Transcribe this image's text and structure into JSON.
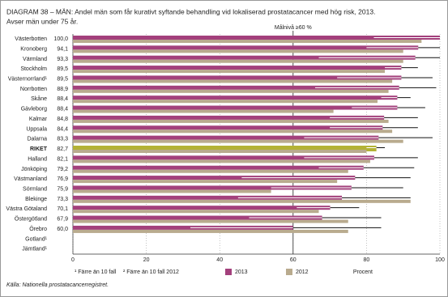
{
  "chart_data": {
    "type": "bar",
    "title": "DIAGRAM 38 – MÄN: Andel män som får kurativt syftande behandling vid lokaliserad prostatacancer med hög risk, 2013.",
    "subtitle": "Avser män under 75 år.",
    "categories": [
      "Västerbotten",
      "Kronoberg",
      "Värmland",
      "Stockholm",
      "Västernorrland¹",
      "Norrbotten",
      "Skåne",
      "Gävleborg",
      "Kalmar",
      "Uppsala",
      "Dalarna",
      "RIKET",
      "Halland",
      "Jönköping",
      "Västmanland",
      "Sörmland",
      "Blekinge",
      "Västra Götaland",
      "Östergötland",
      "Örebro",
      "Gotland¹",
      "Jämtland¹"
    ],
    "series": [
      {
        "name": "2013",
        "color": "#a3407c",
        "values": [
          100,
          94.1,
          93.3,
          89.5,
          89.5,
          88.9,
          88.4,
          88.4,
          84.8,
          84.4,
          83.3,
          82.7,
          82.1,
          79.2,
          76.9,
          75.9,
          73.3,
          70.1,
          67.9,
          60,
          null,
          null
        ],
        "value_labels": [
          "100,0",
          "94,1",
          "93,3",
          "89,5",
          "89,5",
          "88,9",
          "88,4",
          "88,4",
          "84,8",
          "84,4",
          "83,3",
          "82,7",
          "82,1",
          "79,2",
          "76,9",
          "75,9",
          "73,3",
          "70,1",
          "67,9",
          "60,0",
          null,
          null
        ],
        "ci_low": [
          82,
          80,
          67,
          85,
          72,
          66,
          84,
          76,
          70,
          70,
          63,
          80,
          63,
          67,
          46,
          54,
          45,
          61,
          48,
          32,
          null,
          null
        ],
        "ci_high": [
          100,
          100,
          100,
          94,
          98,
          99,
          92,
          96,
          94,
          94,
          98,
          85,
          94,
          93,
          92,
          90,
          92,
          78,
          84,
          84,
          null,
          null
        ]
      },
      {
        "name": "2012",
        "color": "#b9ab8e",
        "values": [
          95,
          90,
          90,
          85,
          87,
          86,
          83,
          71,
          86,
          87,
          90,
          80,
          81,
          75,
          72,
          54,
          92,
          67,
          75,
          75,
          null,
          null
        ]
      }
    ],
    "highlight_category": "RIKET",
    "highlight_color": "#b3b235",
    "target": {
      "value": 60,
      "label": "Målnivå ≥60 %"
    },
    "xlim": [
      0,
      100
    ],
    "xticks": [
      0,
      20,
      40,
      60,
      80,
      100
    ],
    "xlabel": "Procent",
    "grid": true,
    "footnotes": [
      "¹ Färre än 10 fall",
      "² Färre än 10 fall 2012"
    ],
    "source": "Källa: Nationella prostatacancerregistret."
  }
}
